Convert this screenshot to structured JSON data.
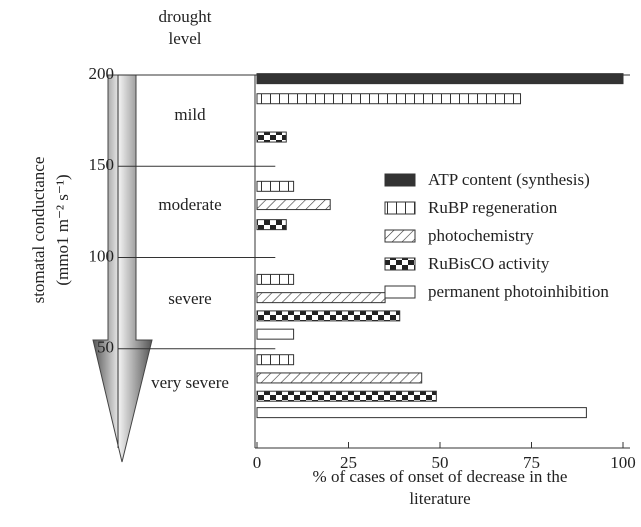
{
  "chart_data": {
    "type": "bar",
    "orientation": "horizontal",
    "x_label": "% of cases of onset of decrease in the literature",
    "y_label": [
      "stomatal conductance",
      "(mmo1 m⁻² s⁻¹)"
    ],
    "drought_title": "drought level",
    "drought_levels": [
      "mild",
      "moderate",
      "severe",
      "very severe"
    ],
    "xlim": [
      0,
      100
    ],
    "xticks": [
      0,
      25,
      50,
      75,
      100
    ],
    "ylim": [
      0,
      200
    ],
    "yticks": [
      50,
      100,
      150,
      200
    ],
    "series": [
      {
        "name": "ATP content (synthesis)",
        "color": "#333333",
        "pattern": "solid",
        "y": [
          198
        ],
        "values": [
          100
        ]
      },
      {
        "name": "RuBP regeneration",
        "color": "#333333",
        "pattern": "vertical",
        "y": [
          187,
          139,
          88,
          44
        ],
        "values": [
          72,
          10,
          10,
          10
        ]
      },
      {
        "name": "photochemistry",
        "color": "#333333",
        "pattern": "hatch",
        "y": [
          129,
          78,
          34
        ],
        "values": [
          20,
          35,
          45
        ]
      },
      {
        "name": "RuBisCO activity",
        "color": "#333333",
        "pattern": "checker",
        "y": [
          166,
          118,
          68,
          24
        ],
        "values": [
          8,
          8,
          39,
          49
        ]
      },
      {
        "name": "permanent photoinhibition",
        "color": "#333333",
        "pattern": "none",
        "y": [
          58,
          15
        ],
        "values": [
          10,
          90
        ]
      }
    ]
  }
}
